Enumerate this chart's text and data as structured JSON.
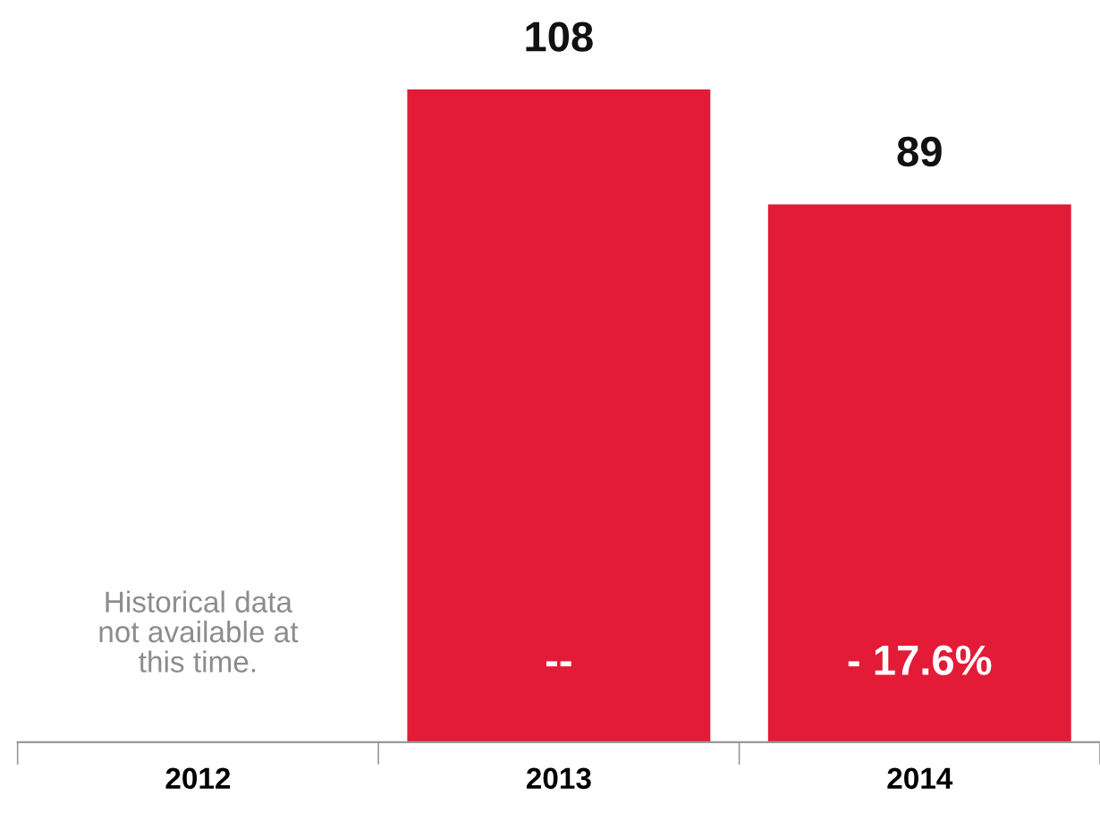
{
  "chart_data": {
    "type": "bar",
    "categories": [
      "2012",
      "2013",
      "2014"
    ],
    "values": [
      null,
      108,
      89
    ],
    "color": "#e31b37",
    "data_labels": true,
    "grid": false,
    "legend": false,
    "tick_labels": "x",
    "annotations": [
      "Historical data\nnot available at\nthis time.",
      "--",
      "- 17.6%"
    ]
  }
}
